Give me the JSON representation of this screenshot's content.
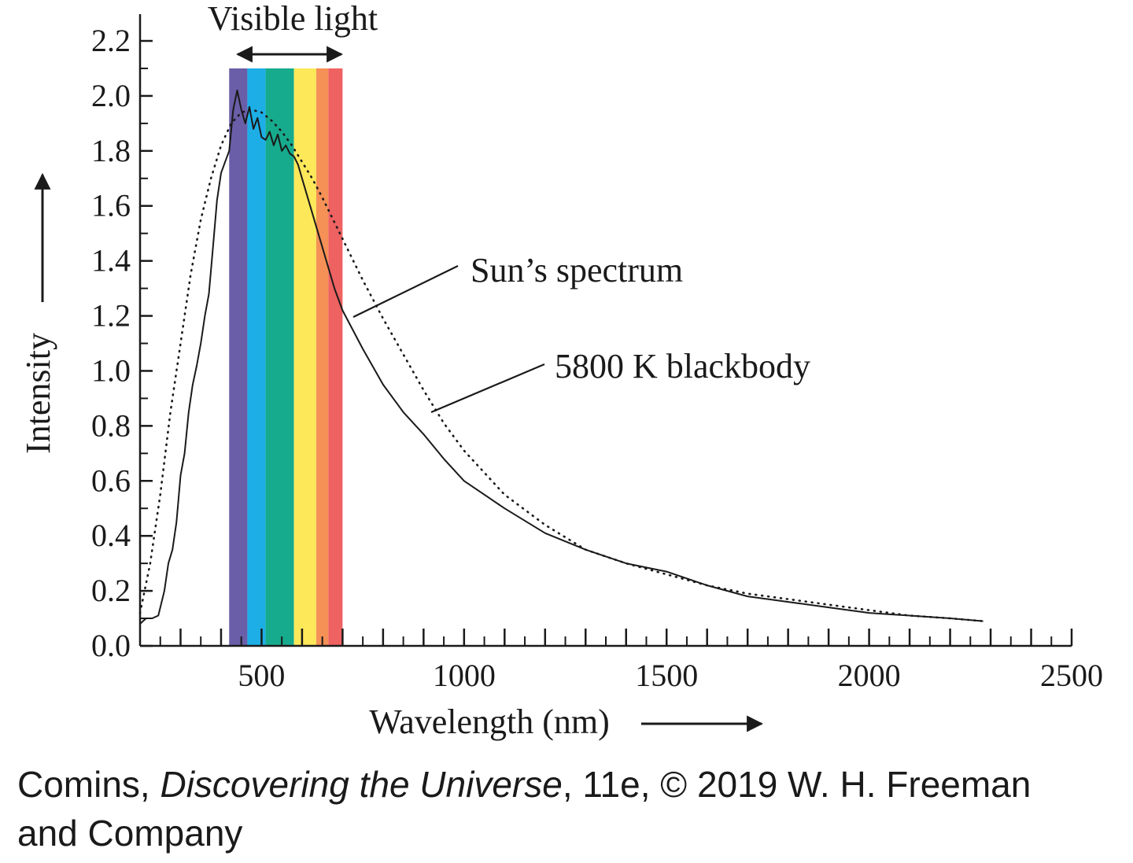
{
  "chart_data": {
    "type": "line",
    "title": "",
    "xlabel": "Wavelength (nm)",
    "ylabel": "Intensity",
    "xlim": [
      200,
      2500
    ],
    "ylim": [
      0,
      2.2
    ],
    "x_ticks": [
      500,
      1000,
      1500,
      2000,
      2500
    ],
    "x_tick_labels": [
      "500",
      "1000",
      "1500",
      "2000",
      "2500"
    ],
    "y_ticks": [
      0.0,
      0.2,
      0.4,
      0.6,
      0.8,
      1.0,
      1.2,
      1.4,
      1.6,
      1.8,
      2.0,
      2.2
    ],
    "y_tick_labels": [
      "0.0",
      "0.2",
      "0.4",
      "0.6",
      "0.8",
      "1.0",
      "1.2",
      "1.4",
      "1.6",
      "1.8",
      "2.0",
      "2.2"
    ],
    "visible_band": {
      "label": "Visible light",
      "top_value": 2.1,
      "bands": [
        {
          "name": "violet",
          "from": 420,
          "to": 465,
          "color": "#6a5ea8"
        },
        {
          "name": "blue",
          "from": 465,
          "to": 510,
          "color": "#1daee6"
        },
        {
          "name": "green",
          "from": 510,
          "to": 580,
          "color": "#17ab8d"
        },
        {
          "name": "yellow",
          "from": 580,
          "to": 635,
          "color": "#fde85a"
        },
        {
          "name": "orange",
          "from": 635,
          "to": 665,
          "color": "#f59056"
        },
        {
          "name": "red",
          "from": 665,
          "to": 700,
          "color": "#ee6262"
        }
      ]
    },
    "series": [
      {
        "name": "Sun's spectrum",
        "style": "solid",
        "x": [
          200,
          215,
          230,
          245,
          260,
          270,
          280,
          290,
          300,
          310,
          320,
          330,
          340,
          350,
          360,
          370,
          380,
          390,
          400,
          410,
          420,
          430,
          440,
          450,
          460,
          470,
          480,
          490,
          500,
          510,
          520,
          530,
          540,
          550,
          560,
          570,
          580,
          590,
          600,
          620,
          640,
          660,
          680,
          700,
          750,
          800,
          850,
          900,
          950,
          1000,
          1100,
          1200,
          1300,
          1400,
          1500,
          1600,
          1700,
          1800,
          1900,
          2000,
          2100,
          2200,
          2280
        ],
        "y": [
          0.08,
          0.1,
          0.1,
          0.11,
          0.2,
          0.3,
          0.35,
          0.45,
          0.62,
          0.7,
          0.85,
          0.95,
          1.02,
          1.1,
          1.2,
          1.28,
          1.45,
          1.62,
          1.72,
          1.76,
          1.8,
          1.95,
          2.02,
          1.95,
          1.9,
          1.96,
          1.88,
          1.92,
          1.85,
          1.84,
          1.87,
          1.82,
          1.86,
          1.8,
          1.82,
          1.79,
          1.78,
          1.75,
          1.7,
          1.6,
          1.5,
          1.4,
          1.3,
          1.22,
          1.08,
          0.95,
          0.85,
          0.77,
          0.68,
          0.6,
          0.5,
          0.41,
          0.35,
          0.3,
          0.27,
          0.22,
          0.18,
          0.16,
          0.14,
          0.12,
          0.11,
          0.1,
          0.09
        ]
      },
      {
        "name": "5800 K blackbody",
        "style": "dotted",
        "x": [
          200,
          225,
          250,
          275,
          300,
          325,
          350,
          375,
          400,
          425,
          450,
          475,
          500,
          525,
          550,
          575,
          600,
          625,
          650,
          700,
          750,
          800,
          850,
          900,
          950,
          1000,
          1100,
          1200,
          1300,
          1400,
          1500,
          1600,
          1700,
          1800,
          1900,
          2000,
          2100,
          2200,
          2280
        ],
        "y": [
          0.12,
          0.3,
          0.55,
          0.85,
          1.1,
          1.35,
          1.55,
          1.7,
          1.82,
          1.9,
          1.94,
          1.95,
          1.94,
          1.91,
          1.87,
          1.82,
          1.76,
          1.7,
          1.63,
          1.48,
          1.33,
          1.19,
          1.06,
          0.93,
          0.81,
          0.71,
          0.55,
          0.44,
          0.35,
          0.3,
          0.26,
          0.22,
          0.19,
          0.17,
          0.15,
          0.13,
          0.11,
          0.1,
          0.09
        ]
      }
    ],
    "annotations": [
      {
        "text": "Sun’s spectrum",
        "target": [
          715,
          1.2
        ],
        "anchor_value": [
          680,
          1.37
        ]
      },
      {
        "text": "5800 K blackbody",
        "target": [
          890,
          0.84
        ],
        "anchor_value": [
          1120,
          1.03
        ]
      }
    ]
  },
  "caption": {
    "author": "Comins, ",
    "title": "Discovering the Universe",
    "rest_line1": ", 11e, © 2019 W. H. Freeman",
    "line2": "and Company"
  }
}
